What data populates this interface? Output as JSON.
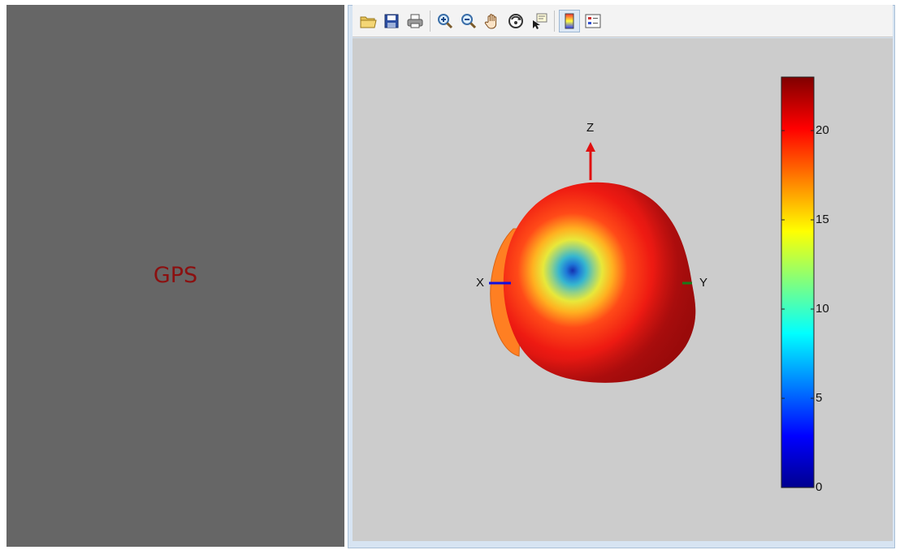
{
  "left_panel": {
    "label": "GPS",
    "label_color": "#8b1010",
    "background": "#666666"
  },
  "toolbar": {
    "items": [
      {
        "name": "open-folder-icon",
        "type": "button"
      },
      {
        "name": "save-icon",
        "type": "button"
      },
      {
        "name": "print-icon",
        "type": "button"
      },
      {
        "name": "separator"
      },
      {
        "name": "zoom-in-icon",
        "type": "button"
      },
      {
        "name": "zoom-out-icon",
        "type": "button"
      },
      {
        "name": "pan-hand-icon",
        "type": "button"
      },
      {
        "name": "rotate-3d-icon",
        "type": "button"
      },
      {
        "name": "data-cursor-icon",
        "type": "button"
      },
      {
        "name": "separator"
      },
      {
        "name": "colorbar-toggle-icon",
        "type": "toggle",
        "active": true
      },
      {
        "name": "legend-toggle-icon",
        "type": "toggle",
        "active": false
      }
    ]
  },
  "plot": {
    "axes": {
      "x_label": "X",
      "y_label": "Y",
      "z_label": "Z"
    },
    "axis_colors": {
      "x": "#1010e0",
      "y": "#1a7a1a",
      "z": "#e01010"
    },
    "colormap": "jet"
  },
  "chart_data": {
    "type": "heatmap",
    "description_type": "3d-radiation-pattern",
    "colorbar": {
      "min": 0,
      "max": 23,
      "ticks": [
        0,
        5,
        10,
        15,
        20
      ],
      "tick_labels": [
        "0",
        "5",
        "10",
        "15",
        "20"
      ],
      "placement": "right"
    },
    "xlabel": "X",
    "ylabel": "Y",
    "zlabel": "Z"
  }
}
